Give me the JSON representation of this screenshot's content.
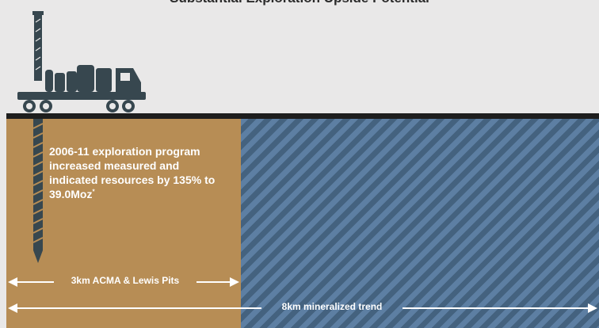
{
  "title": "Substantial Exploration Upside Potential",
  "exploration_note": {
    "text": "2006-11 exploration program increased measured and indicated resources by 135% to 39.0Moz",
    "superscript": "*"
  },
  "measurements": {
    "pits_label": "3km ACMA & Lewis Pits",
    "trend_label": "8km mineralized trend"
  },
  "colors": {
    "background": "#e9e8e8",
    "gold_region": "#b78d55",
    "blue_region": "#4b6a8c",
    "rig": "#37474f"
  },
  "icons": {
    "rig": "drill-rig-truck-icon",
    "drill": "drill-bit-icon"
  }
}
